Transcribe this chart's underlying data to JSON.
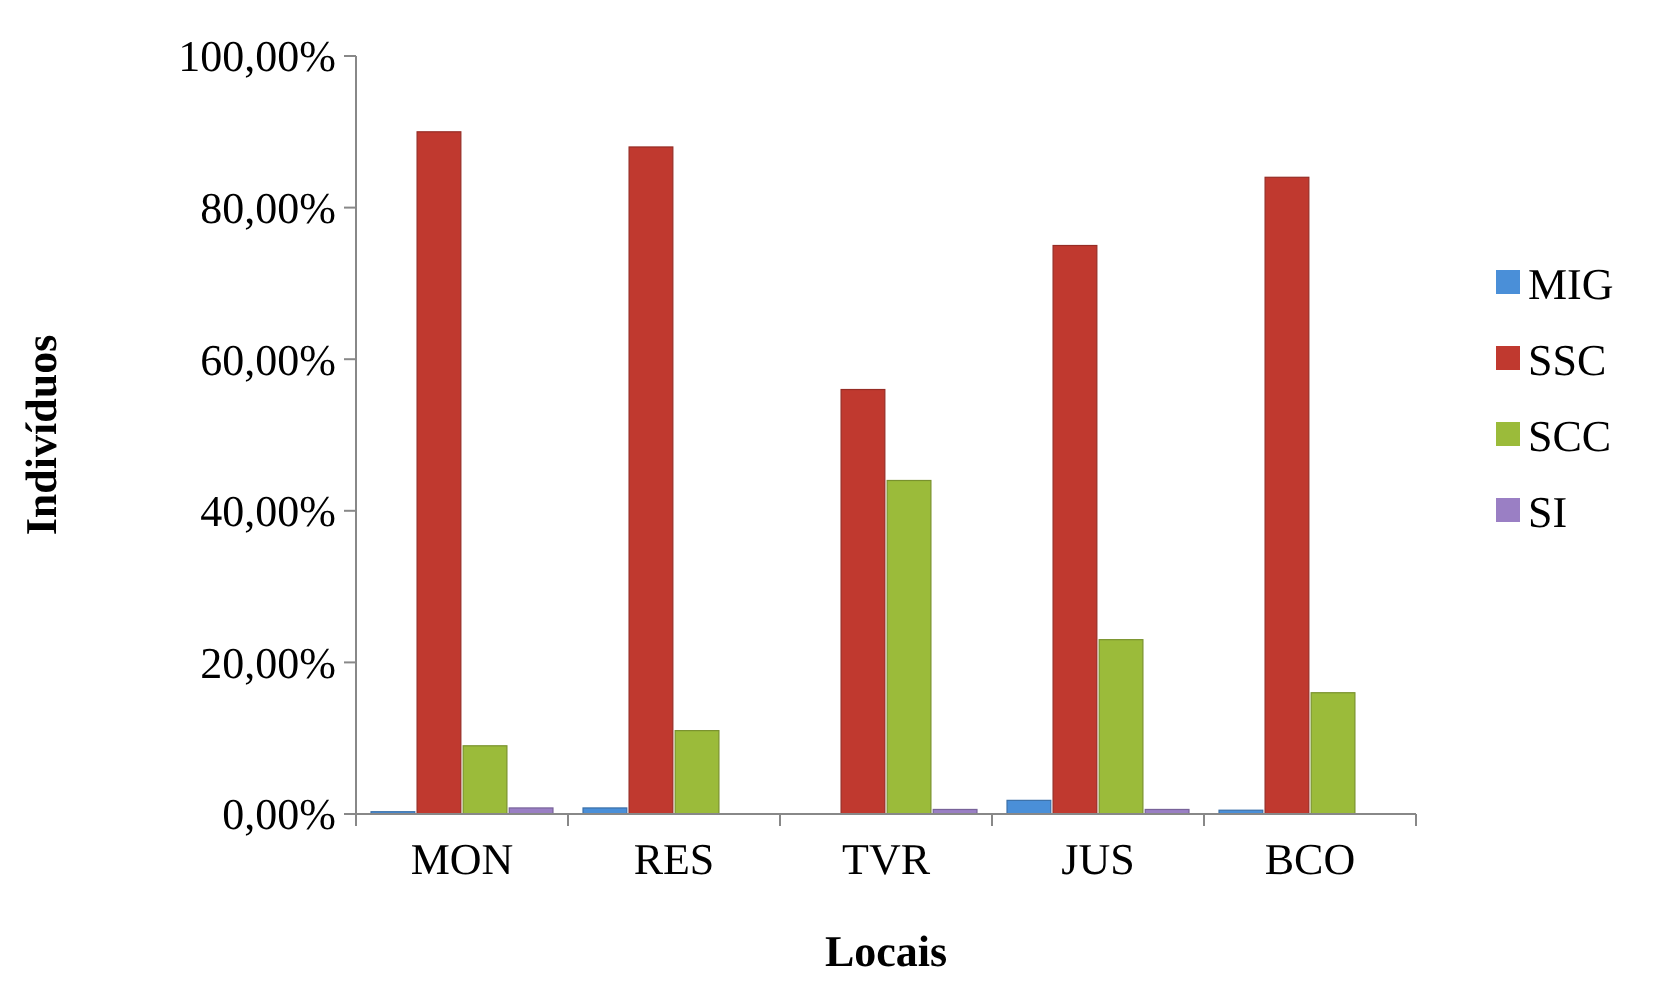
{
  "chart_data": {
    "type": "bar",
    "xlabel": "Locais",
    "ylabel": "Indivíduos",
    "categories": [
      "MON",
      "RES",
      "TVR",
      "JUS",
      "BCO"
    ],
    "series": [
      {
        "name": "MIG",
        "color": "#4a8fd8",
        "values": [
          0.3,
          0.8,
          0,
          1.8,
          0.5
        ]
      },
      {
        "name": "SSC",
        "color": "#c0392f",
        "values": [
          90,
          88,
          56,
          75,
          84
        ]
      },
      {
        "name": "SCC",
        "color": "#9bbb3a",
        "values": [
          9,
          11,
          44,
          23,
          16
        ]
      },
      {
        "name": "SI",
        "color": "#9a7fc4",
        "values": [
          0.8,
          0,
          0.6,
          0.6,
          0
        ]
      }
    ],
    "ylim": [
      0,
      100
    ],
    "yticks": [
      {
        "value": 0,
        "label": "0,00%"
      },
      {
        "value": 20,
        "label": "20,00%"
      },
      {
        "value": 40,
        "label": "40,00%"
      },
      {
        "value": 60,
        "label": "60,00%"
      },
      {
        "value": 80,
        "label": "80,00%"
      },
      {
        "value": 100,
        "label": "100,00%"
      }
    ],
    "grid": false,
    "legend": "right"
  }
}
